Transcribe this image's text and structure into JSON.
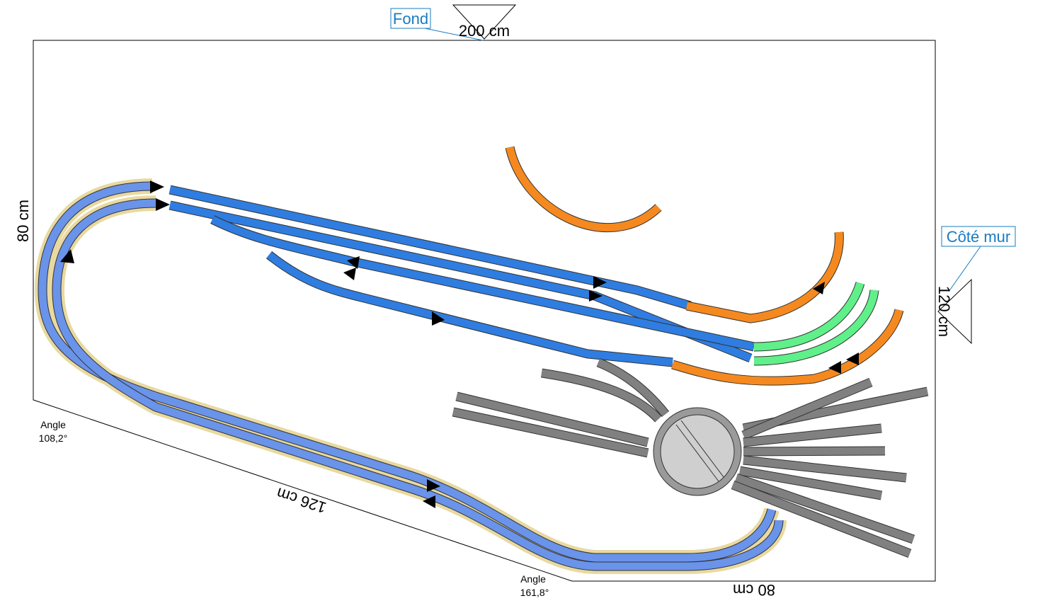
{
  "annotations": {
    "fond": "Fond",
    "cote_mur": "Côté mur"
  },
  "dimensions": {
    "top": "200 cm",
    "left": "80 cm",
    "right": "120 cm",
    "diagonal": "126 cm",
    "bottom": "80 cm"
  },
  "angles": [
    {
      "label": "Angle",
      "value": "108,2°"
    },
    {
      "label": "Angle",
      "value": "161,8°"
    }
  ]
}
